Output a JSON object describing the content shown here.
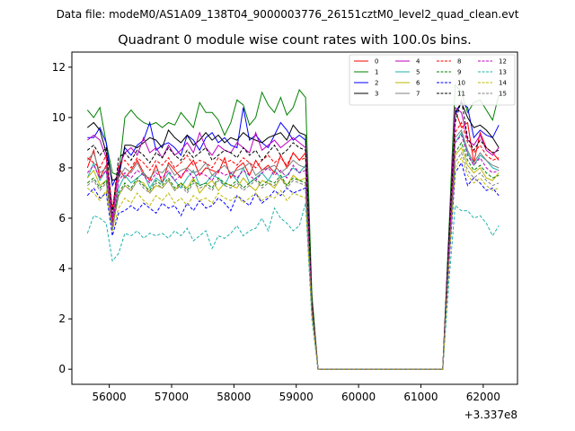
{
  "figure": {
    "suptitle": "Data file: modeM0/AS1A09_138T04_9000003776_26151cztM0_level2_quad_clean.evt"
  },
  "chart_data": {
    "type": "line",
    "title": "Quadrant 0 module wise count rates with 100.0s bins.",
    "xlabel": "",
    "ylabel": "",
    "x_offset_label": "+3.337e8",
    "xlim": [
      55400,
      62550
    ],
    "ylim": [
      -0.6,
      12.6
    ],
    "xticks": [
      "56000",
      "57000",
      "58000",
      "59000",
      "60000",
      "61000",
      "62000"
    ],
    "xtick_values": [
      56000,
      57000,
      58000,
      59000,
      60000,
      61000,
      62000
    ],
    "yticks": [
      "0",
      "2",
      "4",
      "6",
      "8",
      "10",
      "12"
    ],
    "ytick_values": [
      0,
      2,
      4,
      6,
      8,
      10,
      12
    ],
    "legend": "top-right",
    "x": [
      55650,
      55750,
      55850,
      55950,
      56050,
      56150,
      56250,
      56350,
      56450,
      56550,
      56650,
      56750,
      56850,
      56950,
      57050,
      57150,
      57250,
      57350,
      57450,
      57550,
      57650,
      57750,
      57850,
      57950,
      58050,
      58150,
      58250,
      58350,
      58450,
      58550,
      58650,
      58750,
      58850,
      58950,
      59050,
      59150,
      59250,
      59350,
      61350,
      61450,
      61550,
      61650,
      61750,
      61850,
      61950,
      62050,
      62150,
      62250
    ],
    "series": [
      {
        "name": "0",
        "color": "#ff0000",
        "dash": "solid",
        "values": [
          8.0,
          8.7,
          7.6,
          8.1,
          5.9,
          8.0,
          7.6,
          7.9,
          8.3,
          7.8,
          7.5,
          8.1,
          7.4,
          8.2,
          7.9,
          7.6,
          8.0,
          8.3,
          7.7,
          8.0,
          7.9,
          7.8,
          8.4,
          7.6,
          8.0,
          8.2,
          7.7,
          8.3,
          7.9,
          8.1,
          7.8,
          8.5,
          8.0,
          8.6,
          8.3,
          8.6,
          2.5,
          0.0,
          0.0,
          4.5,
          10.3,
          9.6,
          9.8,
          8.2,
          9.4,
          8.8,
          8.6,
          8.3
        ]
      },
      {
        "name": "1",
        "color": "#008000",
        "dash": "solid",
        "values": [
          10.3,
          10.0,
          10.4,
          9.0,
          7.8,
          7.7,
          10.0,
          10.3,
          10.0,
          9.8,
          9.7,
          9.8,
          9.6,
          9.8,
          9.7,
          10.2,
          9.9,
          9.6,
          10.6,
          10.2,
          10.2,
          9.9,
          9.3,
          9.8,
          10.7,
          10.5,
          9.7,
          10.0,
          11.0,
          10.5,
          10.2,
          10.8,
          10.1,
          10.4,
          11.1,
          10.8,
          3.0,
          0.0,
          0.0,
          5.5,
          11.3,
          11.0,
          10.2,
          10.6,
          10.7,
          10.3,
          9.9,
          10.9
        ]
      },
      {
        "name": "2",
        "color": "#0000ff",
        "dash": "solid",
        "values": [
          9.2,
          9.2,
          9.6,
          9.0,
          7.3,
          7.8,
          8.8,
          8.5,
          8.9,
          9.1,
          9.8,
          8.7,
          8.9,
          9.0,
          8.8,
          8.5,
          9.3,
          9.1,
          8.7,
          9.2,
          9.4,
          9.0,
          9.2,
          8.9,
          8.8,
          10.4,
          9.1,
          9.3,
          9.0,
          8.8,
          9.3,
          9.8,
          9.5,
          9.1,
          9.3,
          9.1,
          2.6,
          0.0,
          0.0,
          5.2,
          10.1,
          10.6,
          10.4,
          9.2,
          9.5,
          9.3,
          9.2,
          9.7
        ]
      },
      {
        "name": "3",
        "color": "#000000",
        "dash": "solid",
        "values": [
          9.6,
          9.8,
          9.5,
          8.6,
          7.5,
          7.6,
          8.9,
          8.9,
          8.8,
          9.0,
          9.2,
          9.1,
          8.8,
          9.5,
          9.2,
          9.0,
          9.3,
          8.9,
          9.1,
          9.4,
          9.1,
          9.3,
          9.0,
          9.2,
          9.1,
          9.4,
          9.2,
          9.1,
          9.0,
          9.2,
          9.3,
          9.4,
          9.1,
          9.7,
          9.4,
          9.3,
          2.7,
          0.0,
          0.0,
          5.3,
          10.2,
          10.6,
          10.0,
          9.6,
          9.7,
          9.5,
          9.2,
          8.8
        ]
      },
      {
        "name": "4",
        "color": "#bf00bf",
        "dash": "solid",
        "values": [
          9.1,
          9.3,
          9.1,
          8.4,
          6.0,
          8.0,
          8.6,
          8.8,
          8.5,
          9.2,
          8.6,
          8.8,
          8.4,
          8.9,
          8.5,
          8.7,
          9.0,
          8.6,
          9.4,
          8.8,
          8.5,
          8.9,
          8.7,
          8.6,
          9.0,
          8.8,
          8.6,
          9.4,
          8.7,
          8.9,
          9.1,
          8.8,
          9.0,
          9.2,
          9.0,
          8.8,
          2.5,
          0.0,
          0.0,
          5.0,
          10.4,
          10.2,
          9.1,
          8.9,
          9.3,
          8.7,
          8.5,
          8.8
        ]
      },
      {
        "name": "5",
        "color": "#20b2aa",
        "dash": "solid",
        "values": [
          7.6,
          8.2,
          7.5,
          7.9,
          5.5,
          7.2,
          7.7,
          7.4,
          7.6,
          7.8,
          7.2,
          7.6,
          7.4,
          7.8,
          7.5,
          7.2,
          7.6,
          7.9,
          7.3,
          7.4,
          7.7,
          7.6,
          7.3,
          7.8,
          7.5,
          8.0,
          7.4,
          7.6,
          7.8,
          7.5,
          7.9,
          7.6,
          7.7,
          8.0,
          7.8,
          8.1,
          2.4,
          0.0,
          0.0,
          4.6,
          9.0,
          9.4,
          8.6,
          8.1,
          8.5,
          8.3,
          8.0,
          7.9
        ]
      },
      {
        "name": "6",
        "color": "#bdb700",
        "dash": "solid",
        "values": [
          7.6,
          7.9,
          7.3,
          7.5,
          5.6,
          6.9,
          7.3,
          7.1,
          7.5,
          7.4,
          7.0,
          7.3,
          7.2,
          7.5,
          7.1,
          7.4,
          7.2,
          7.6,
          7.0,
          7.3,
          7.5,
          7.1,
          7.4,
          7.3,
          7.2,
          7.6,
          7.3,
          7.1,
          7.5,
          7.4,
          7.2,
          7.6,
          7.3,
          7.7,
          7.5,
          7.6,
          2.3,
          0.0,
          0.0,
          4.4,
          8.5,
          8.8,
          8.1,
          7.8,
          8.0,
          7.6,
          7.5,
          7.8
        ]
      },
      {
        "name": "7",
        "color": "#808080",
        "dash": "solid",
        "values": [
          8.3,
          8.6,
          7.8,
          8.0,
          5.6,
          7.6,
          8.0,
          7.8,
          8.2,
          7.7,
          7.6,
          7.9,
          7.8,
          8.1,
          7.7,
          7.9,
          8.0,
          7.8,
          7.9,
          8.2,
          7.7,
          7.9,
          8.1,
          7.8,
          7.9,
          8.0,
          8.2,
          7.7,
          7.9,
          8.0,
          8.1,
          7.8,
          8.0,
          8.3,
          8.1,
          8.0,
          2.5,
          0.0,
          0.0,
          4.8,
          9.2,
          9.5,
          8.7,
          8.2,
          8.6,
          8.3,
          8.1,
          8.0
        ]
      },
      {
        "name": "8",
        "color": "#ff0000",
        "dash": "dashed",
        "values": [
          8.4,
          8.2,
          8.0,
          8.5,
          6.4,
          8.1,
          8.3,
          8.0,
          8.4,
          8.2,
          7.9,
          8.3,
          8.1,
          8.4,
          8.0,
          8.2,
          8.5,
          8.1,
          8.3,
          8.2,
          8.0,
          8.4,
          8.2,
          8.3,
          8.1,
          8.4,
          8.2,
          8.0,
          8.3,
          8.5,
          8.2,
          8.4,
          8.1,
          8.6,
          8.3,
          8.4,
          2.6,
          0.0,
          0.0,
          4.9,
          9.4,
          9.8,
          9.0,
          8.6,
          8.9,
          8.5,
          8.3,
          8.4
        ]
      },
      {
        "name": "9",
        "color": "#008000",
        "dash": "dashed",
        "values": [
          7.4,
          7.6,
          7.2,
          7.5,
          5.8,
          7.0,
          7.4,
          7.2,
          7.6,
          7.3,
          7.1,
          7.5,
          7.3,
          7.6,
          7.2,
          7.4,
          7.1,
          7.5,
          7.3,
          7.4,
          7.2,
          7.6,
          7.4,
          7.3,
          7.5,
          7.2,
          7.4,
          7.6,
          7.3,
          7.5,
          7.4,
          7.7,
          7.3,
          7.6,
          7.5,
          7.4,
          2.3,
          0.0,
          0.0,
          4.5,
          8.6,
          9.0,
          8.3,
          7.9,
          8.1,
          7.8,
          7.6,
          7.7
        ]
      },
      {
        "name": "10",
        "color": "#0000ff",
        "dash": "dashed",
        "values": [
          6.9,
          7.2,
          6.8,
          7.0,
          5.3,
          6.2,
          6.3,
          6.5,
          6.3,
          6.6,
          6.4,
          6.2,
          6.6,
          6.4,
          6.5,
          6.1,
          6.6,
          6.3,
          6.7,
          6.4,
          6.5,
          6.8,
          6.6,
          6.3,
          6.9,
          6.7,
          6.5,
          7.0,
          6.6,
          6.8,
          7.1,
          6.9,
          7.2,
          7.0,
          7.1,
          7.2,
          2.2,
          0.0,
          0.0,
          4.1,
          7.8,
          8.2,
          7.3,
          7.6,
          7.4,
          7.1,
          7.2,
          6.9
        ]
      },
      {
        "name": "11",
        "color": "#000000",
        "dash": "dashed",
        "values": [
          8.7,
          8.9,
          8.5,
          8.8,
          6.2,
          8.4,
          8.6,
          8.3,
          8.7,
          8.5,
          8.2,
          8.6,
          8.4,
          8.8,
          8.5,
          8.3,
          8.7,
          8.4,
          8.6,
          8.8,
          8.3,
          8.5,
          8.7,
          8.6,
          8.4,
          8.8,
          8.5,
          8.7,
          8.3,
          8.6,
          8.9,
          8.5,
          8.7,
          9.0,
          8.8,
          8.7,
          2.6,
          0.0,
          0.0,
          5.1,
          9.8,
          10.7,
          9.2,
          8.7,
          9.1,
          8.8,
          8.6,
          8.7
        ]
      },
      {
        "name": "12",
        "color": "#bf00bf",
        "dash": "dashed",
        "values": [
          7.8,
          8.1,
          7.6,
          7.9,
          5.7,
          7.5,
          7.8,
          7.6,
          7.9,
          7.7,
          7.4,
          7.8,
          7.6,
          7.9,
          7.5,
          7.7,
          7.9,
          7.6,
          7.8,
          7.7,
          7.5,
          7.9,
          7.7,
          7.8,
          7.6,
          7.9,
          7.7,
          7.5,
          7.8,
          8.0,
          7.7,
          7.9,
          7.6,
          8.1,
          7.8,
          7.9,
          2.4,
          0.0,
          0.0,
          4.7,
          9.0,
          9.3,
          8.5,
          8.1,
          8.4,
          8.0,
          7.8,
          7.9
        ]
      },
      {
        "name": "13",
        "color": "#20b2aa",
        "dash": "dashed",
        "values": [
          5.4,
          6.1,
          6.0,
          5.8,
          4.3,
          4.6,
          5.4,
          5.3,
          5.5,
          5.2,
          5.4,
          5.3,
          5.4,
          5.2,
          5.5,
          5.3,
          5.6,
          5.1,
          5.3,
          5.5,
          4.8,
          5.3,
          5.2,
          5.4,
          5.7,
          5.3,
          5.5,
          5.6,
          6.0,
          5.5,
          6.4,
          6.0,
          5.8,
          5.5,
          5.7,
          6.6,
          2.0,
          0.0,
          0.0,
          3.5,
          6.5,
          6.3,
          6.3,
          6.0,
          6.1,
          5.8,
          5.3,
          5.7
        ]
      },
      {
        "name": "14",
        "color": "#bdb700",
        "dash": "dashed",
        "values": [
          7.2,
          7.0,
          6.7,
          7.1,
          5.5,
          6.4,
          6.8,
          6.6,
          7.0,
          6.7,
          6.5,
          6.9,
          6.7,
          7.0,
          6.6,
          6.8,
          6.5,
          6.9,
          6.7,
          6.8,
          6.6,
          7.0,
          6.8,
          6.7,
          6.9,
          6.6,
          6.8,
          7.0,
          6.7,
          6.9,
          6.8,
          7.1,
          6.7,
          7.0,
          6.9,
          6.8,
          2.2,
          0.0,
          0.0,
          4.2,
          8.0,
          8.4,
          7.7,
          7.4,
          7.6,
          7.3,
          7.1,
          7.2
        ]
      },
      {
        "name": "15",
        "color": "#808080",
        "dash": "dashed",
        "values": [
          7.3,
          7.5,
          7.1,
          7.4,
          5.6,
          6.9,
          7.3,
          7.1,
          7.5,
          7.2,
          7.0,
          7.4,
          7.2,
          7.5,
          7.1,
          7.3,
          7.0,
          7.4,
          7.2,
          7.3,
          7.1,
          7.5,
          7.3,
          7.2,
          7.4,
          7.1,
          7.3,
          7.5,
          7.2,
          7.4,
          7.3,
          7.6,
          7.2,
          7.5,
          7.4,
          7.3,
          2.3,
          0.0,
          0.0,
          4.3,
          8.2,
          8.6,
          7.9,
          7.6,
          7.8,
          7.5,
          7.3,
          7.4
        ]
      }
    ]
  }
}
